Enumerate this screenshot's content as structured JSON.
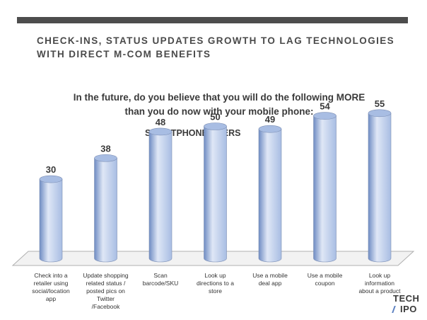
{
  "headline": "CHECK-INS, STATUS UPDATES GROWTH TO LAG TECHNOLOGIES WITH DIRECT M-COM BENEFITS",
  "question_line1": "In the future, do you believe that you will do the following MORE",
  "question_line2": "than you do now with your mobile phone:",
  "segment_label": "SMARTPHONE USERS",
  "logo": {
    "line1": "TECH",
    "line2": "IPO"
  },
  "colors": {
    "bar_light": "#dfe7f6",
    "bar_mid": "#a8bde3",
    "bar_dark": "#6f8cc3",
    "floor": "#f2f2f2"
  },
  "chart_data": {
    "type": "bar",
    "title": "",
    "xlabel": "",
    "ylabel": "",
    "ylim": [
      0,
      60
    ],
    "grid": false,
    "categories": [
      [
        "Check into a",
        "retailer using",
        "social/location",
        "app"
      ],
      [
        "Update shopping",
        "related status /",
        "posted pics on",
        "Twitter",
        "/Facebook"
      ],
      [
        "Scan",
        "barcode/SKU"
      ],
      [
        "Look up",
        "directions to a",
        "store"
      ],
      [
        "Use a mobile",
        "deal app"
      ],
      [
        "Use a mobile",
        "coupon"
      ],
      [
        "Look up",
        "information",
        "about a product"
      ]
    ],
    "values": [
      30,
      38,
      48,
      50,
      49,
      54,
      55
    ]
  }
}
